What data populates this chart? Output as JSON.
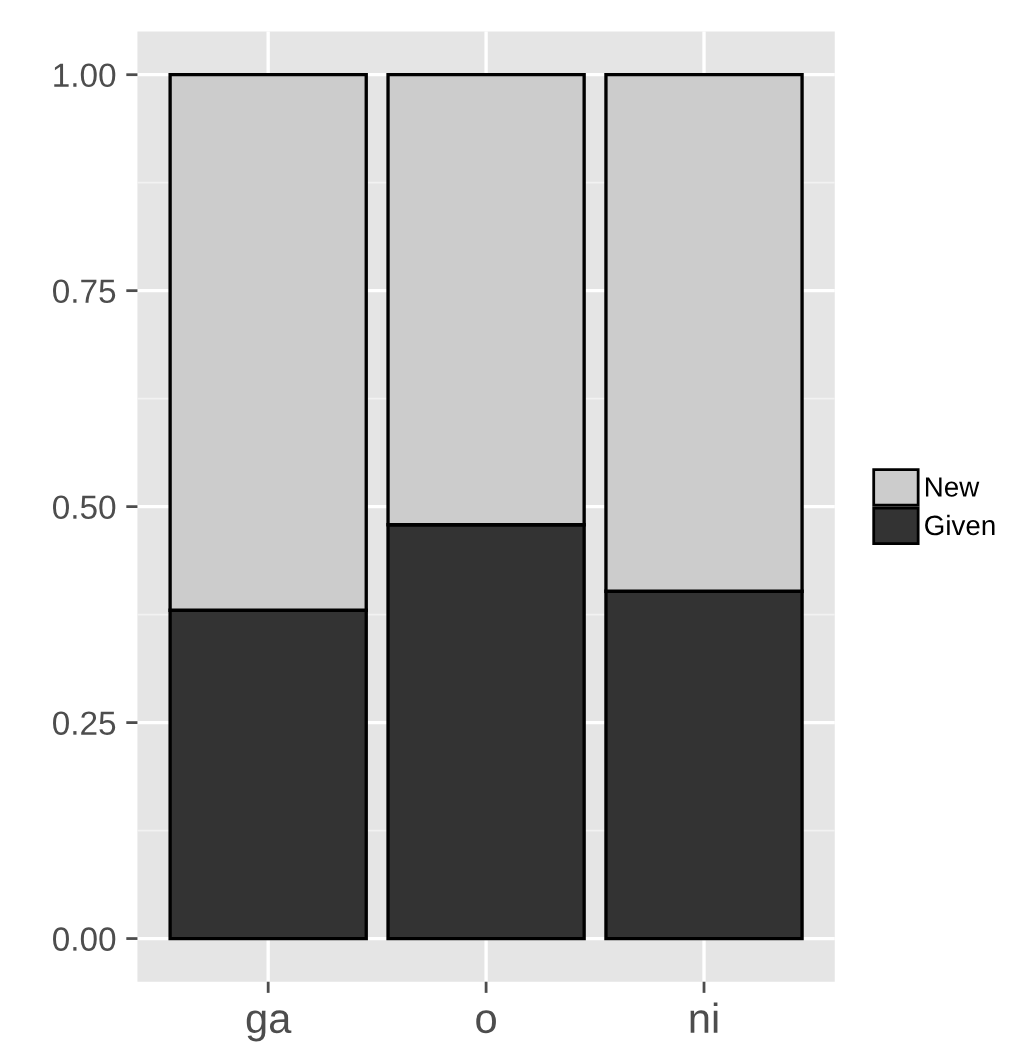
{
  "chart_data": {
    "type": "bar",
    "stacked": true,
    "categories": [
      "ga",
      "o",
      "ni"
    ],
    "series": [
      {
        "name": "Given",
        "color": "#333333",
        "values": [
          0.38,
          0.479,
          0.402
        ]
      },
      {
        "name": "New",
        "color": "#cccccc",
        "values": [
          0.62,
          0.521,
          0.598
        ]
      }
    ],
    "ylim": [
      -0.05,
      1.05
    ],
    "yticks": [
      {
        "value": 0,
        "label": "0.00"
      },
      {
        "value": 0.25,
        "label": "0.25"
      },
      {
        "value": 0.5,
        "label": "0.50"
      },
      {
        "value": 0.75,
        "label": "0.75"
      },
      {
        "value": 1,
        "label": "1.00"
      }
    ],
    "grid": true,
    "legend": "right"
  }
}
